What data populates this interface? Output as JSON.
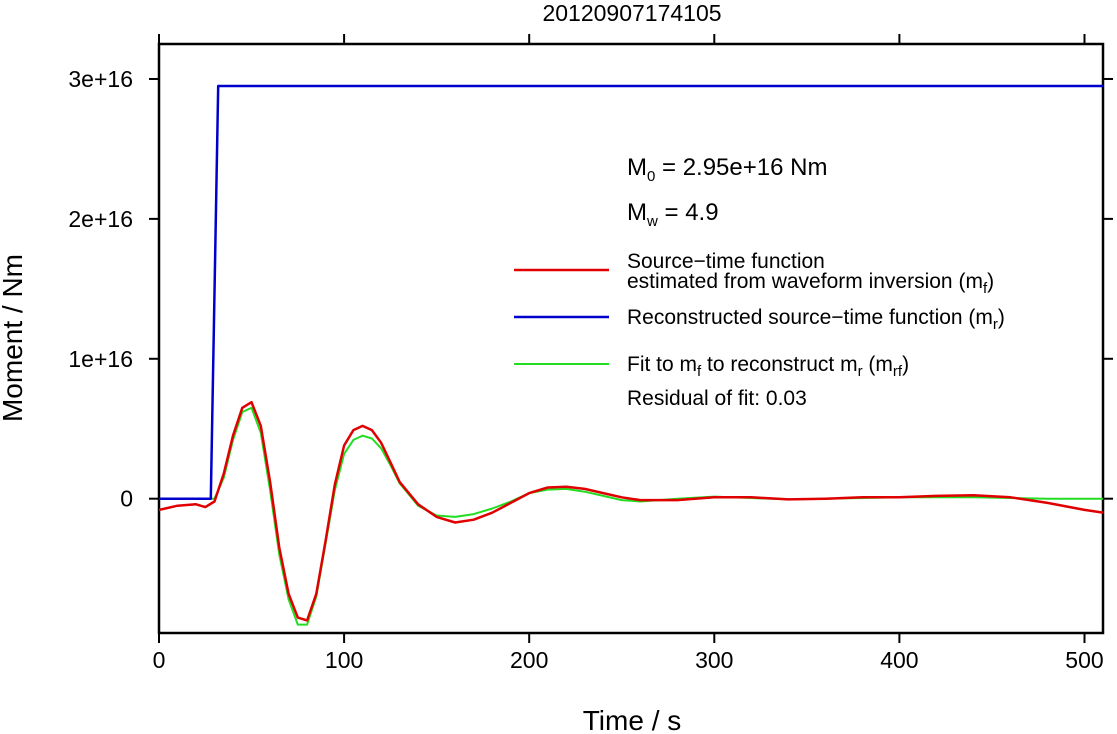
{
  "chart_data": {
    "type": "line",
    "title": "20120907174105",
    "xlabel": "Time / s",
    "ylabel": "Moment / Nm",
    "xlim": [
      0,
      510
    ],
    "ylim": [
      -9600000000000000.0,
      3.25e+16
    ],
    "x_ticks": [
      0,
      100,
      200,
      300,
      400,
      500
    ],
    "x_tick_labels": [
      "0",
      "100",
      "200",
      "300",
      "400",
      "500"
    ],
    "y_ticks": [
      0,
      1e+16,
      2e+16,
      3e+16
    ],
    "y_tick_labels": [
      "0",
      "1e+16",
      "2e+16",
      "3e+16"
    ],
    "grid": false,
    "legend_position": "right",
    "annotations": {
      "m0_main": "M",
      "m0_sub": "0",
      "m0_value": " = 2.95e+16 Nm",
      "mw_main": "M",
      "mw_sub": "w",
      "mw_value": " = 4.9",
      "residual": "Residual of fit: 0.03"
    },
    "legend": {
      "red_line1": "Source−time function",
      "red_line2": "estimated from waveform inversion (m",
      "red_sub": "f",
      "red_close": ")",
      "blue_text": "Reconstructed source−time function (m",
      "blue_sub": "r",
      "blue_close": ")",
      "green_a": "Fit to m",
      "green_a_sub": "f",
      "green_b": " to reconstruct m",
      "green_b_sub": "r",
      "green_c": " (m",
      "green_c_sub": "rf",
      "green_close": ")"
    },
    "series": [
      {
        "color": "#e00000",
        "x": [
          0,
          10,
          20,
          25,
          30,
          35,
          40,
          45,
          50,
          55,
          60,
          65,
          70,
          75,
          80,
          85,
          90,
          95,
          100,
          105,
          110,
          115,
          120,
          125,
          130,
          140,
          150,
          160,
          170,
          180,
          190,
          200,
          210,
          220,
          230,
          240,
          250,
          260,
          280,
          300,
          320,
          340,
          360,
          380,
          400,
          420,
          440,
          460,
          480,
          500,
          510
        ],
        "y": [
          -800000000000000.0,
          -500000000000000.0,
          -400000000000000.0,
          -600000000000000.0,
          -200000000000000.0,
          1800000000000000.0,
          4500000000000000.0,
          6500000000000000.0,
          6900000000000000.0,
          5200000000000000.0,
          1200000000000000.0,
          -3500000000000000.0,
          -6800000000000000.0,
          -8500000000000000.0,
          -8700000000000000.0,
          -6800000000000000.0,
          -3000000000000000.0,
          1000000000000000.0,
          3800000000000000.0,
          4900000000000000.0,
          5200000000000000.0,
          4900000000000000.0,
          4000000000000000.0,
          2600000000000000.0,
          1200000000000000.0,
          -400000000000000.0,
          -1300000000000000.0,
          -1700000000000000.0,
          -1500000000000000.0,
          -1000000000000000.0,
          -300000000000000.0,
          400000000000000.0,
          800000000000000.0,
          850000000000000.0,
          700000000000000.0,
          400000000000000.0,
          100000000000000.0,
          -100000000000000.0,
          -100000000000000.0,
          100000000000000.0,
          100000000000000.0,
          -50000000000000.0,
          0,
          100000000000000.0,
          100000000000000.0,
          200000000000000.0,
          250000000000000.0,
          100000000000000.0,
          -300000000000000.0,
          -800000000000000.0,
          -1000000000000000.0
        ]
      },
      {
        "color": "#0000cc",
        "x": [
          0,
          26,
          28,
          32,
          33,
          510
        ],
        "y": [
          0,
          0,
          0,
          2.95e+16,
          2.95e+16,
          2.95e+16
        ]
      },
      {
        "color": "#22dd22",
        "x": [
          0,
          25,
          28,
          30,
          35,
          40,
          45,
          50,
          55,
          60,
          65,
          70,
          75,
          80,
          85,
          90,
          95,
          100,
          105,
          110,
          115,
          120,
          125,
          130,
          140,
          150,
          160,
          170,
          180,
          190,
          200,
          210,
          220,
          230,
          240,
          250,
          260,
          280,
          300,
          320,
          340,
          360,
          380,
          400,
          420,
          440,
          460,
          480,
          500,
          510
        ],
        "y": [
          0,
          0,
          0,
          0,
          1500000000000000.0,
          4200000000000000.0,
          6200000000000000.0,
          6500000000000000.0,
          4700000000000000.0,
          600000000000000.0,
          -4000000000000000.0,
          -7200000000000000.0,
          -9000000000000000.0,
          -9000000000000000.0,
          -7000000000000000.0,
          -3200000000000000.0,
          600000000000000.0,
          3200000000000000.0,
          4200000000000000.0,
          4500000000000000.0,
          4300000000000000.0,
          3600000000000000.0,
          2400000000000000.0,
          1100000000000000.0,
          -500000000000000.0,
          -1200000000000000.0,
          -1300000000000000.0,
          -1100000000000000.0,
          -700000000000000.0,
          -200000000000000.0,
          400000000000000.0,
          650000000000000.0,
          700000000000000.0,
          500000000000000.0,
          200000000000000.0,
          -100000000000000.0,
          -200000000000000.0,
          0,
          150000000000000.0,
          50000000000000.0,
          -50000000000000.0,
          0,
          50000000000000.0,
          100000000000000.0,
          100000000000000.0,
          100000000000000.0,
          50000000000000.0,
          0,
          0,
          0
        ]
      }
    ]
  }
}
